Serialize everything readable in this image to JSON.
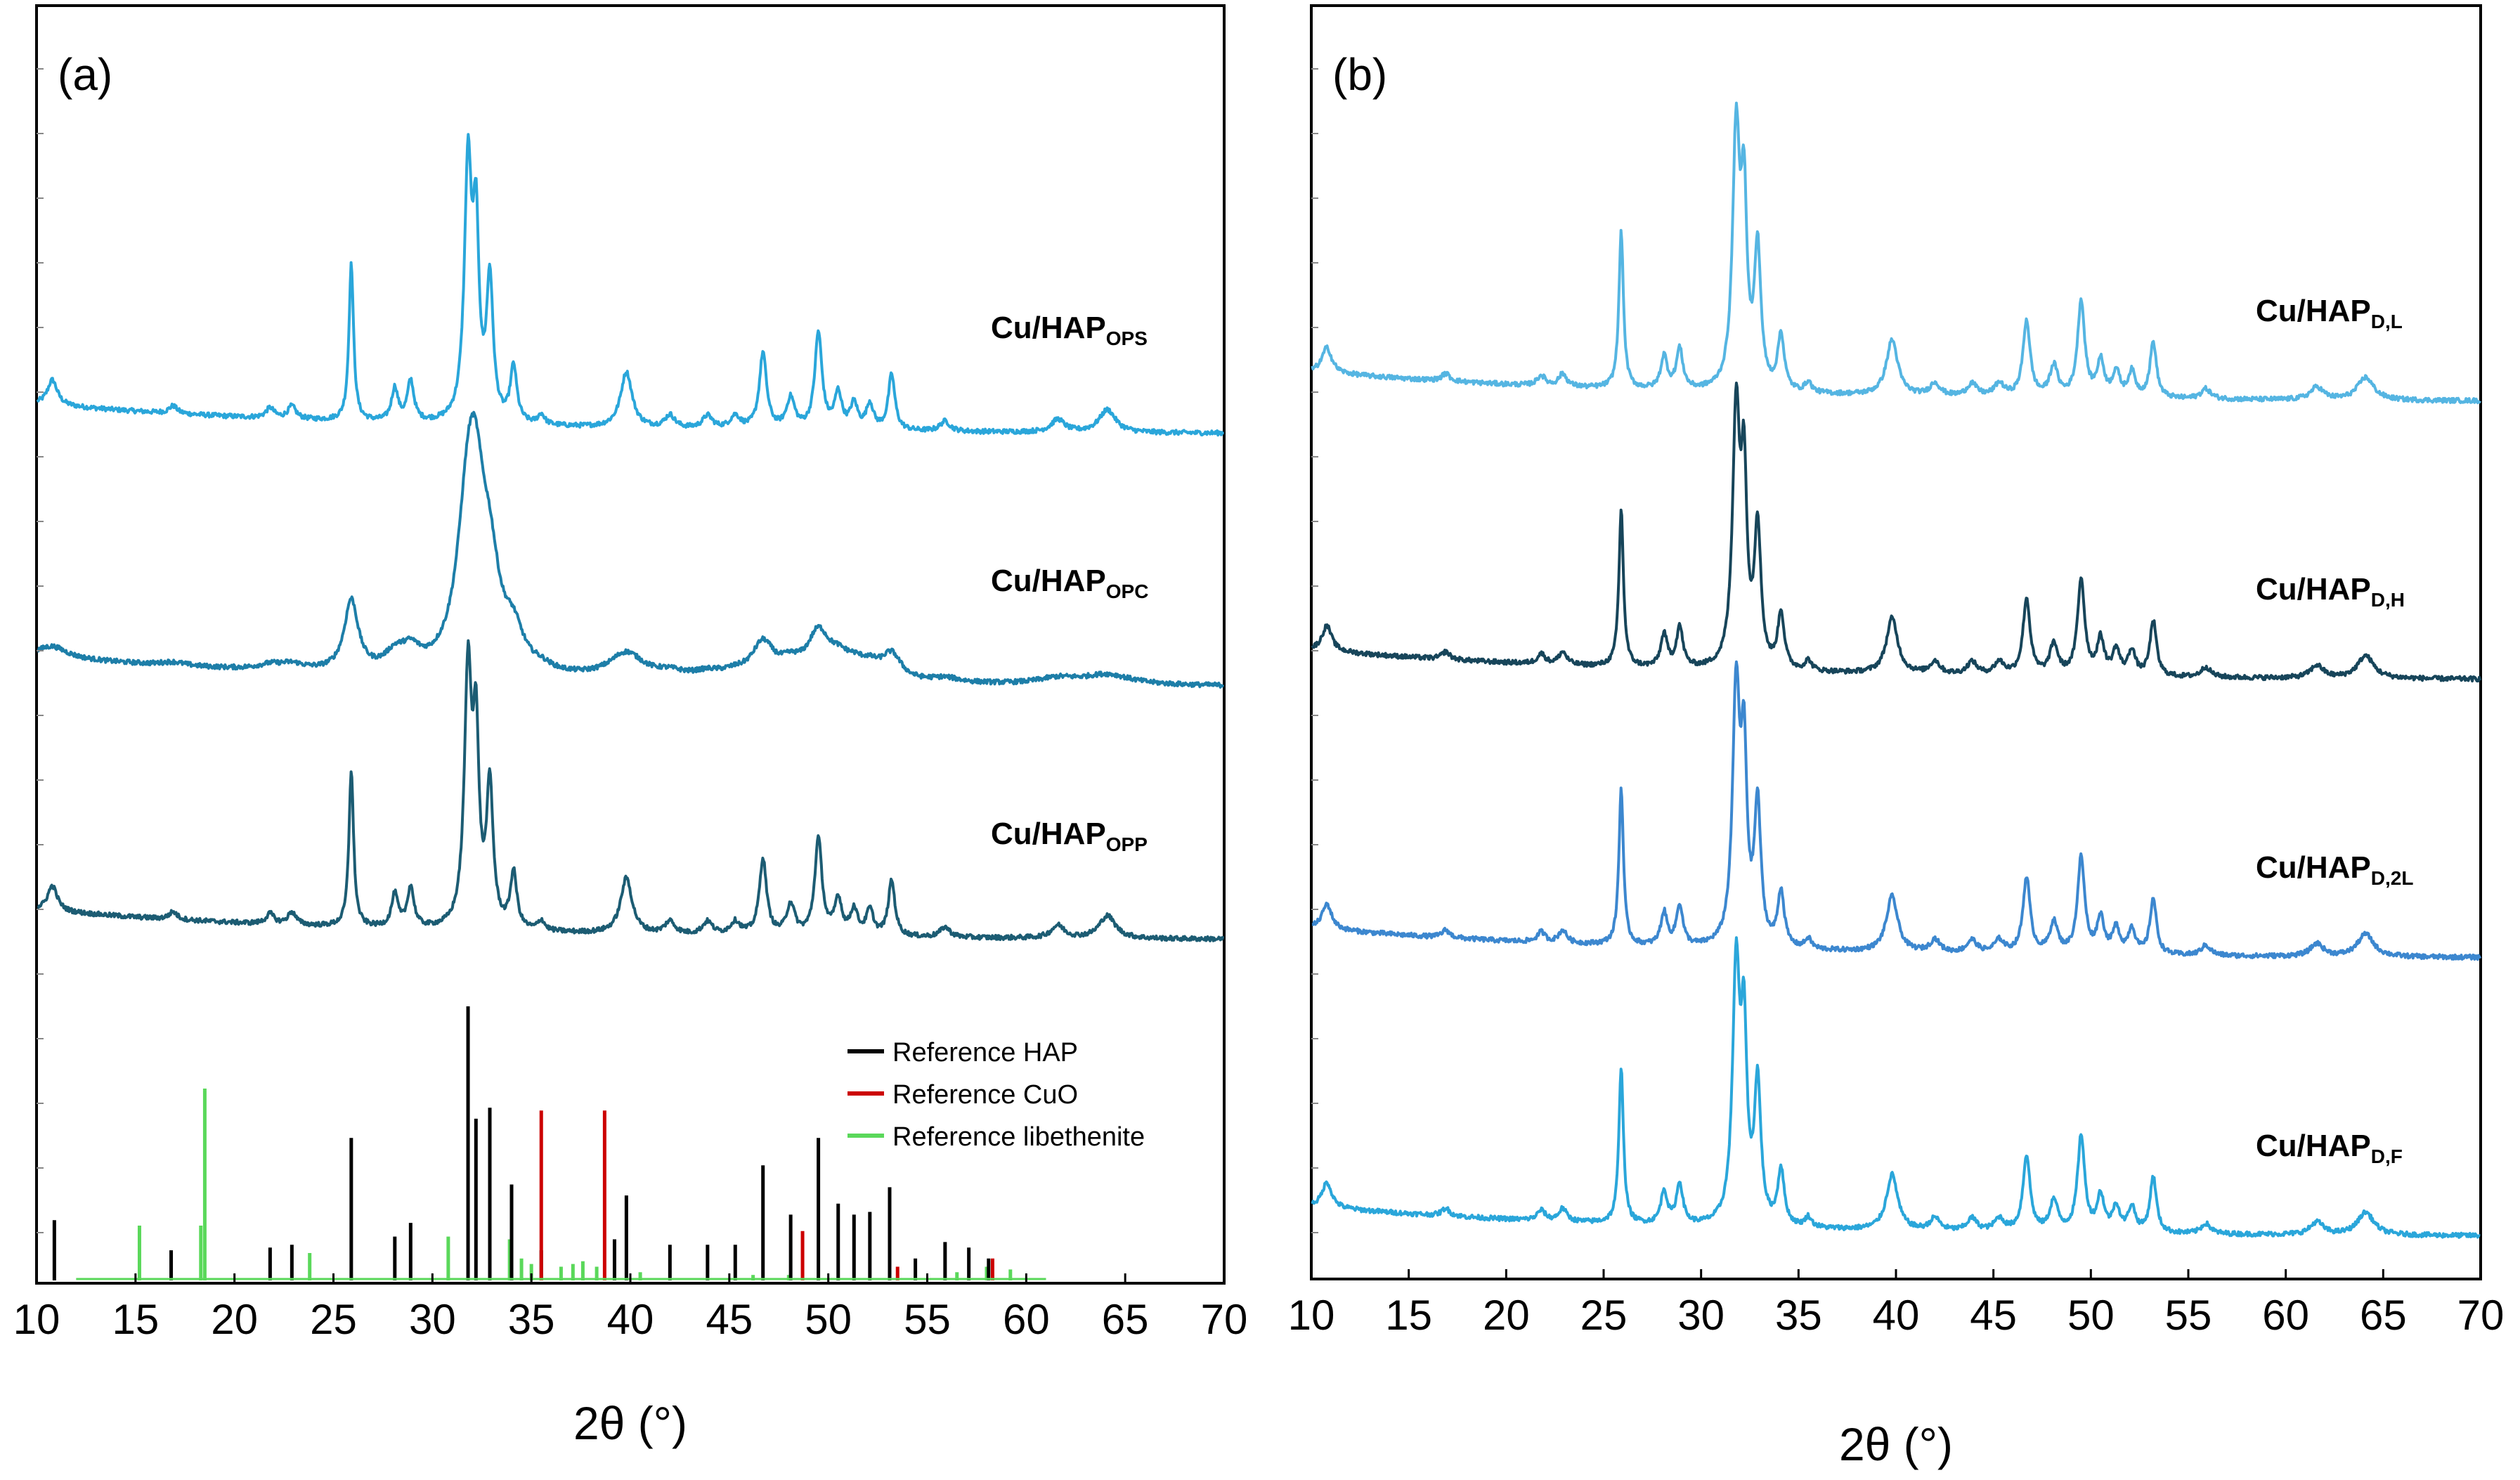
{
  "chart_data": [
    {
      "type": "line",
      "panel_label": "(a)",
      "xlabel": "2θ (°)",
      "ylabel": "",
      "xlim": [
        10,
        70
      ],
      "xticks": [
        "10",
        "15",
        "20",
        "25",
        "30",
        "35",
        "40",
        "45",
        "50",
        "55",
        "60",
        "65",
        "70"
      ],
      "series": [
        {
          "name": "Cu/HAP",
          "subscript": "OPS",
          "color": "#2aa6da",
          "offset": 3.2
        },
        {
          "name": "Cu/HAP",
          "subscript": "OPC",
          "color": "#1d7ea8",
          "offset": 2.2
        },
        {
          "name": "Cu/HAP",
          "subscript": "OPP",
          "color": "#1c5c73",
          "offset": 1.2
        }
      ],
      "legend": [
        {
          "label": "Reference HAP",
          "color": "#000000"
        },
        {
          "label": "Reference CuO",
          "color": "#cc0000"
        },
        {
          "label": "Reference libethenite",
          "color": "#5ad85a"
        }
      ],
      "reference_hap": {
        "x": [
          10.9,
          16.8,
          21.8,
          22.9,
          25.9,
          28.1,
          28.9,
          31.8,
          32.2,
          32.9,
          34.0,
          35.5,
          39.2,
          39.8,
          42.0,
          43.9,
          45.3,
          46.7,
          48.1,
          49.5,
          50.5,
          51.3,
          52.1,
          53.1,
          54.4,
          55.9,
          57.1,
          58.1
        ],
        "y": [
          0.22,
          0.11,
          0.12,
          0.13,
          0.52,
          0.16,
          0.21,
          1.0,
          0.59,
          0.63,
          0.35,
          0.11,
          0.15,
          0.31,
          0.13,
          0.13,
          0.13,
          0.42,
          0.24,
          0.52,
          0.28,
          0.24,
          0.25,
          0.34,
          0.08,
          0.14,
          0.12,
          0.08
        ]
      },
      "reference_cuo": {
        "x": [
          35.5,
          38.7,
          48.7,
          53.5,
          58.3
        ],
        "y": [
          0.62,
          0.62,
          0.18,
          0.05,
          0.08
        ]
      },
      "reference_libethenite": {
        "x": [
          15.2,
          18.3,
          18.5,
          23.8,
          30.8,
          33.9,
          34.5,
          35.0,
          36.5,
          37.1,
          37.6,
          38.3,
          40.5,
          46.2,
          48.0,
          56.5,
          58.0,
          59.2
        ],
        "y": [
          0.2,
          0.2,
          0.7,
          0.1,
          0.16,
          0.15,
          0.08,
          0.06,
          0.05,
          0.06,
          0.07,
          0.05,
          0.03,
          0.02,
          0.02,
          0.03,
          0.05,
          0.04
        ]
      }
    },
    {
      "type": "line",
      "panel_label": "(b)",
      "xlabel": "2θ (°)",
      "ylabel": "",
      "xlim": [
        10,
        70
      ],
      "xticks": [
        "10",
        "15",
        "20",
        "25",
        "30",
        "35",
        "40",
        "45",
        "50",
        "55",
        "60",
        "65",
        "70"
      ],
      "series": [
        {
          "name": "Cu/HAP",
          "subscript": "D,L",
          "color": "#55b5e2",
          "offset": 3.3
        },
        {
          "name": "Cu/HAP",
          "subscript": "D,H",
          "color": "#17455a",
          "offset": 2.2
        },
        {
          "name": "Cu/HAP",
          "subscript": "D,2L",
          "color": "#3c87cf",
          "offset": 1.1
        },
        {
          "name": "Cu/HAP",
          "subscript": "D,F",
          "color": "#2aa6da",
          "offset": 0.0
        }
      ]
    }
  ]
}
